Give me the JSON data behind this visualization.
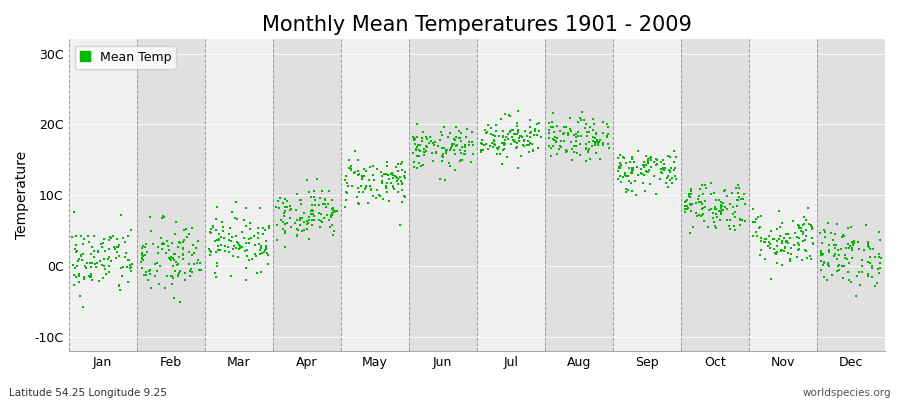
{
  "title": "Monthly Mean Temperatures 1901 - 2009",
  "ylabel": "Temperature",
  "yticks": [
    -10,
    0,
    10,
    20,
    30
  ],
  "ytick_labels": [
    "-10C",
    "0C",
    "10C",
    "20C",
    "30C"
  ],
  "ylim": [
    -12,
    32
  ],
  "months": [
    "Jan",
    "Feb",
    "Mar",
    "Apr",
    "May",
    "Jun",
    "Jul",
    "Aug",
    "Sep",
    "Oct",
    "Nov",
    "Dec"
  ],
  "dot_color": "#00bb00",
  "bg_color_light": "#f0f0f0",
  "bg_color_dark": "#e0e0e0",
  "fig_bg_color": "#ffffff",
  "legend_label": "Mean Temp",
  "bottom_left": "Latitude 54.25 Longitude 9.25",
  "bottom_right": "worldspecies.org",
  "title_fontsize": 15,
  "axis_fontsize": 10,
  "tick_fontsize": 9,
  "monthly_mean": [
    0.8,
    0.9,
    3.5,
    7.5,
    12.0,
    16.5,
    18.2,
    17.8,
    13.5,
    8.5,
    3.8,
    1.5
  ],
  "monthly_std": [
    2.5,
    2.8,
    2.0,
    1.8,
    1.8,
    1.5,
    1.5,
    1.5,
    1.5,
    1.8,
    2.0,
    2.2
  ],
  "n_years": 109,
  "seed": 42,
  "dot_size": 3
}
